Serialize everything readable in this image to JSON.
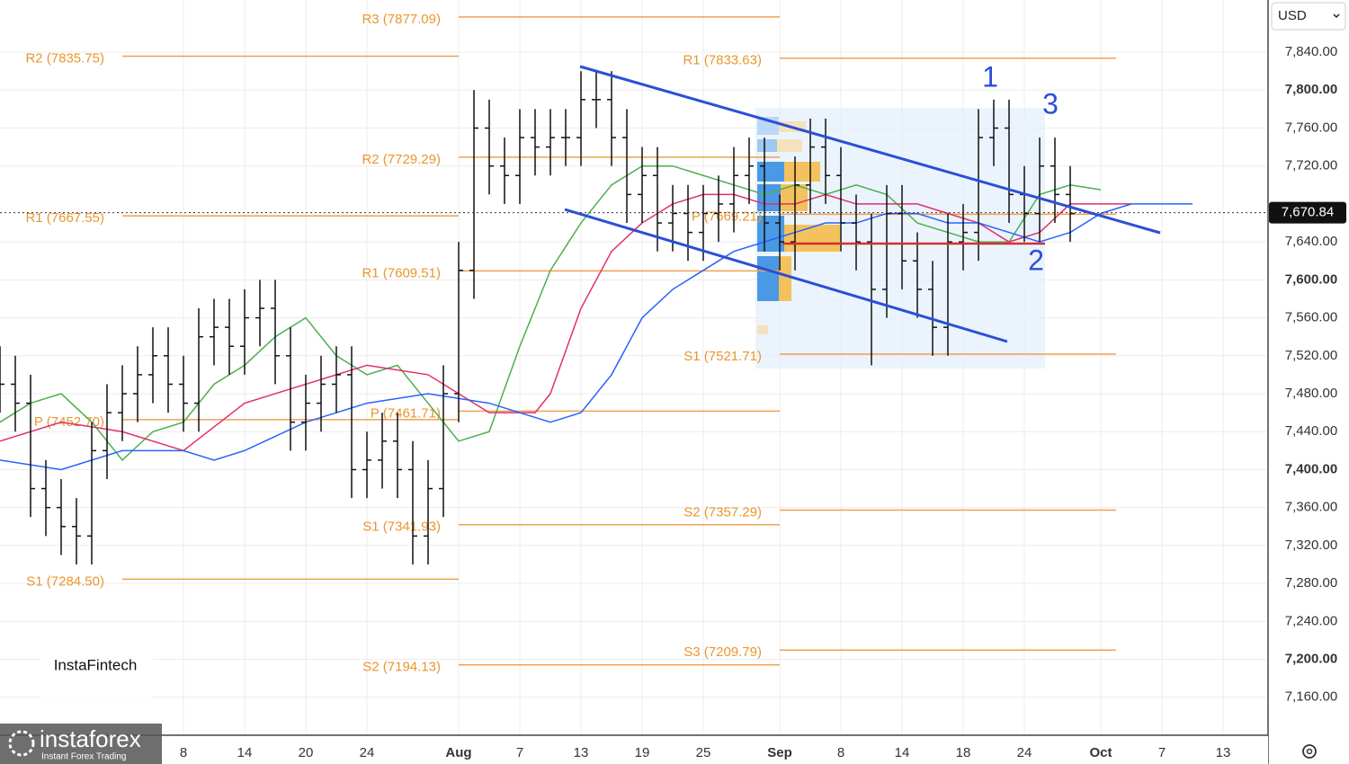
{
  "chart_data": {
    "type": "ohlc",
    "currency": "USD",
    "xlim": [
      0,
      83
    ],
    "ylim": [
      7120,
      7895
    ],
    "grid": true,
    "xticks": [
      {
        "value": 12,
        "label": "8"
      },
      {
        "value": 16,
        "label": "14"
      },
      {
        "value": 20,
        "label": "20"
      },
      {
        "value": 24,
        "label": "24"
      },
      {
        "value": 30,
        "label": "Aug"
      },
      {
        "value": 34,
        "label": "7"
      },
      {
        "value": 38,
        "label": "13"
      },
      {
        "value": 42,
        "label": "19"
      },
      {
        "value": 46,
        "label": "25"
      },
      {
        "value": 51,
        "label": "Sep"
      },
      {
        "value": 55,
        "label": "8"
      },
      {
        "value": 59,
        "label": "14"
      },
      {
        "value": 63,
        "label": "18"
      },
      {
        "value": 67,
        "label": "24"
      },
      {
        "value": 72,
        "label": "Oct"
      },
      {
        "value": 76,
        "label": "7"
      },
      {
        "value": 80,
        "label": "13"
      }
    ],
    "yticks": [
      {
        "value": 7160,
        "label": "7,160.00"
      },
      {
        "value": 7200,
        "label": "7,200.00"
      },
      {
        "value": 7240,
        "label": "7,240.00"
      },
      {
        "value": 7280,
        "label": "7,280.00"
      },
      {
        "value": 7320,
        "label": "7,320.00"
      },
      {
        "value": 7360,
        "label": "7,360.00"
      },
      {
        "value": 7400,
        "label": "7,400.00"
      },
      {
        "value": 7440,
        "label": "7,440.00"
      },
      {
        "value": 7480,
        "label": "7,480.00"
      },
      {
        "value": 7520,
        "label": "7,520.00"
      },
      {
        "value": 7560,
        "label": "7,560.00"
      },
      {
        "value": 7600,
        "label": "7,600.00"
      },
      {
        "value": 7640,
        "label": "7,640.00"
      },
      {
        "value": 7720,
        "label": "7,720.00"
      },
      {
        "value": 7760,
        "label": "7,760.00"
      },
      {
        "value": 7800,
        "label": "7,800.00"
      },
      {
        "value": 7840,
        "label": "7,840.00"
      }
    ],
    "last_price": {
      "value": 7670.84,
      "label": "7,670.84"
    },
    "bars": {
      "open": [
        7500,
        7490,
        7470,
        7380,
        7360,
        7340,
        7330,
        7420,
        7460,
        7480,
        7500,
        7520,
        7490,
        7470,
        7540,
        7550,
        7530,
        7560,
        7570,
        7520,
        7450,
        7470,
        7490,
        7500,
        7400,
        7410,
        7430,
        7400,
        7330,
        7380,
        7480,
        7610,
        7760,
        7720,
        7710,
        7750,
        7740,
        7750,
        7750,
        7790,
        7790,
        7750,
        7690,
        7710,
        7660,
        7670,
        7650,
        7670,
        7680,
        7710,
        7720,
        7660,
        7640,
        7700,
        7740,
        7710,
        7660,
        7640,
        7590,
        7670,
        7620,
        7590,
        7550,
        7640,
        7650,
        7750,
        7760,
        7690,
        7670,
        7720,
        7690
      ],
      "high": [
        7530,
        7520,
        7500,
        7410,
        7390,
        7370,
        7450,
        7490,
        7510,
        7530,
        7550,
        7550,
        7520,
        7570,
        7580,
        7580,
        7590,
        7600,
        7600,
        7550,
        7500,
        7520,
        7530,
        7530,
        7440,
        7460,
        7460,
        7430,
        7410,
        7510,
        7640,
        7800,
        7790,
        7750,
        7780,
        7780,
        7780,
        7780,
        7820,
        7820,
        7820,
        7780,
        7740,
        7740,
        7700,
        7700,
        7700,
        7710,
        7740,
        7750,
        7750,
        7690,
        7730,
        7770,
        7770,
        7740,
        7690,
        7670,
        7700,
        7700,
        7650,
        7620,
        7670,
        7680,
        7780,
        7790,
        7790,
        7720,
        7750,
        7750,
        7720
      ],
      "low": [
        7460,
        7440,
        7350,
        7330,
        7310,
        7300,
        7300,
        7390,
        7430,
        7450,
        7470,
        7460,
        7440,
        7440,
        7510,
        7500,
        7500,
        7530,
        7490,
        7420,
        7420,
        7440,
        7460,
        7370,
        7370,
        7380,
        7370,
        7300,
        7300,
        7350,
        7450,
        7580,
        7690,
        7680,
        7680,
        7710,
        7710,
        7720,
        7720,
        7760,
        7720,
        7660,
        7660,
        7630,
        7630,
        7620,
        7620,
        7640,
        7650,
        7680,
        7630,
        7610,
        7610,
        7670,
        7680,
        7630,
        7610,
        7510,
        7560,
        7590,
        7560,
        7520,
        7520,
        7610,
        7620,
        7720,
        7660,
        7640,
        7640,
        7660,
        7640
      ],
      "close": [
        7490,
        7470,
        7380,
        7360,
        7340,
        7330,
        7420,
        7460,
        7480,
        7500,
        7520,
        7490,
        7470,
        7540,
        7550,
        7530,
        7560,
        7570,
        7520,
        7450,
        7470,
        7490,
        7500,
        7400,
        7410,
        7430,
        7400,
        7330,
        7380,
        7480,
        7610,
        7760,
        7720,
        7710,
        7750,
        7740,
        7750,
        7750,
        7790,
        7790,
        7750,
        7690,
        7710,
        7660,
        7670,
        7650,
        7670,
        7680,
        7710,
        7720,
        7660,
        7640,
        7700,
        7740,
        7710,
        7660,
        7640,
        7590,
        7670,
        7620,
        7590,
        7550,
        7640,
        7650,
        7750,
        7760,
        7690,
        7670,
        7720,
        7690,
        7670
      ]
    },
    "moving_averages": [
      {
        "color": "#4caf50",
        "x": [
          0,
          2,
          4,
          6,
          8,
          10,
          12,
          14,
          16,
          18,
          20,
          22,
          24,
          26,
          28,
          30,
          32,
          34,
          36,
          38,
          40,
          42,
          44,
          46,
          48,
          50,
          52,
          54,
          56,
          58,
          60,
          62,
          64,
          66,
          68,
          70,
          72
        ],
        "values": [
          7450,
          7470,
          7480,
          7450,
          7410,
          7440,
          7450,
          7490,
          7510,
          7540,
          7560,
          7520,
          7500,
          7510,
          7470,
          7430,
          7440,
          7530,
          7610,
          7660,
          7700,
          7720,
          7720,
          7710,
          7700,
          7690,
          7700,
          7690,
          7700,
          7690,
          7660,
          7650,
          7640,
          7640,
          7690,
          7700,
          7695
        ]
      },
      {
        "color": "#e0306a",
        "x": [
          0,
          4,
          8,
          12,
          16,
          20,
          24,
          28,
          32,
          35,
          36,
          38,
          40,
          42,
          44,
          46,
          48,
          50,
          52,
          54,
          56,
          58,
          60,
          62,
          64,
          66,
          68,
          70,
          72,
          74
        ],
        "values": [
          7430,
          7450,
          7440,
          7420,
          7470,
          7490,
          7510,
          7500,
          7460,
          7460,
          7480,
          7570,
          7630,
          7660,
          7680,
          7690,
          7690,
          7680,
          7680,
          7690,
          7680,
          7680,
          7680,
          7670,
          7660,
          7640,
          7650,
          7680,
          7680,
          7680
        ]
      },
      {
        "color": "#2962ff",
        "x": [
          0,
          4,
          8,
          12,
          14,
          16,
          20,
          24,
          28,
          32,
          36,
          38,
          40,
          42,
          44,
          46,
          48,
          50,
          52,
          54,
          56,
          58,
          60,
          62,
          64,
          66,
          68,
          70,
          72,
          74,
          76,
          78
        ],
        "values": [
          7410,
          7400,
          7420,
          7420,
          7410,
          7420,
          7450,
          7470,
          7480,
          7470,
          7450,
          7460,
          7500,
          7560,
          7590,
          7610,
          7630,
          7640,
          7650,
          7660,
          7660,
          7670,
          7670,
          7660,
          7660,
          7650,
          7640,
          7650,
          7670,
          7680,
          7680,
          7680
        ]
      }
    ],
    "pivots": [
      {
        "label": "R2 (7835.75)",
        "value": 7835.75,
        "start": 8,
        "end": 30
      },
      {
        "label": "R1 (7667.55)",
        "value": 7667.55,
        "start": 8,
        "end": 30
      },
      {
        "label": "P (7452.70)",
        "value": 7452.7,
        "start": 8,
        "end": 30
      },
      {
        "label": "S1 (7284.50)",
        "value": 7284.5,
        "start": 8,
        "end": 30
      },
      {
        "label": "R3 (7877.09)",
        "value": 7877.09,
        "start": 30,
        "end": 51
      },
      {
        "label": "R2 (7729.29)",
        "value": 7729.29,
        "start": 30,
        "end": 51
      },
      {
        "label": "R1 (7609.51)",
        "value": 7609.51,
        "start": 30,
        "end": 51
      },
      {
        "label": "P (7461.71)",
        "value": 7461.71,
        "start": 30,
        "end": 51
      },
      {
        "label": "S1 (7341.93)",
        "value": 7341.93,
        "start": 30,
        "end": 51
      },
      {
        "label": "S2 (7194.13)",
        "value": 7194.13,
        "start": 30,
        "end": 51
      },
      {
        "label": "R1 (7833.63)",
        "value": 7833.63,
        "start": 51,
        "end": 73
      },
      {
        "label": "P (7669.21)",
        "value": 7669.21,
        "start": 51,
        "end": 73
      },
      {
        "label": "S1 (7521.71)",
        "value": 7521.71,
        "start": 51,
        "end": 73
      },
      {
        "label": "S2 (7357.29)",
        "value": 7357.29,
        "start": 51,
        "end": 73
      },
      {
        "label": "S3 (7209.79)",
        "value": 7209.79,
        "start": 51,
        "end": 73
      }
    ],
    "annotations": [
      "1",
      "2",
      "3"
    ],
    "branding": {
      "panel": "InstaFintech",
      "watermark": "instaforex",
      "tagline": "Instant Forex Trading"
    }
  }
}
